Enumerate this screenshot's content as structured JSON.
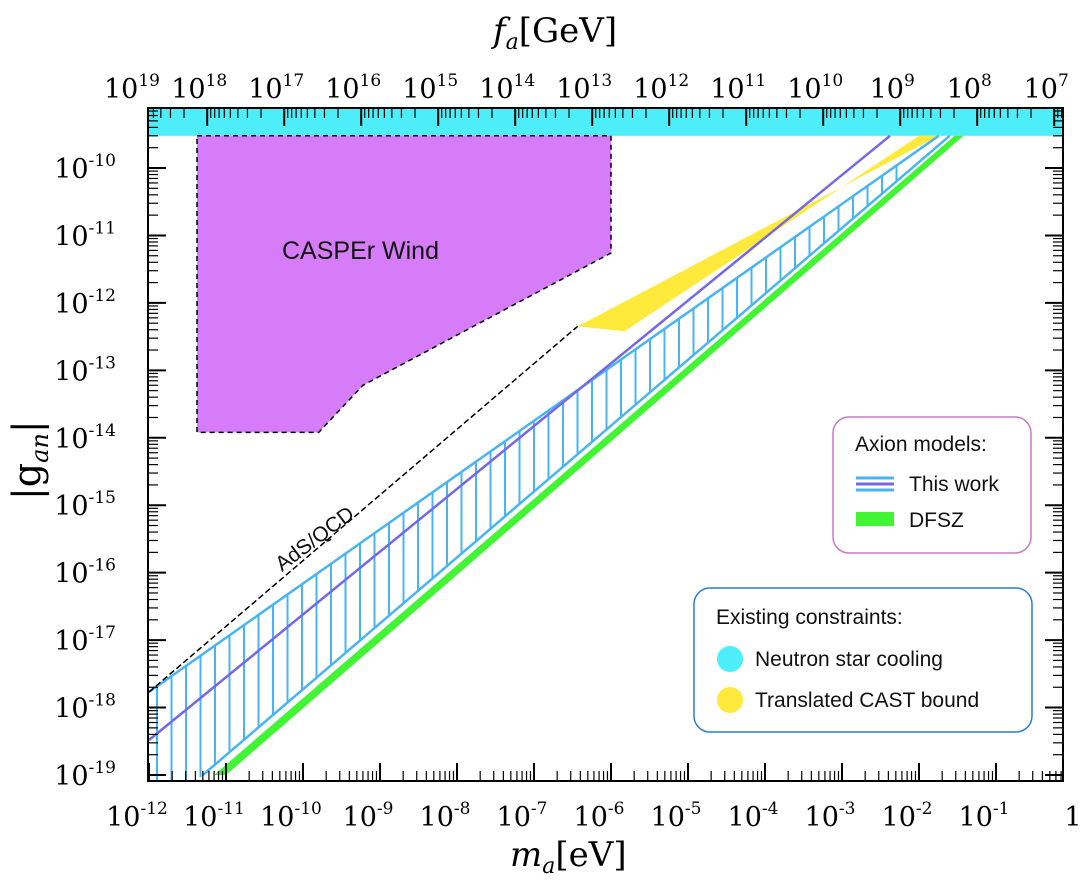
{
  "chart_data": {
    "type": "area",
    "x_scale": "log",
    "y_scale": "log",
    "xlim": [
      1e-12,
      1
    ],
    "ylim": [
      1e-19,
      1e-09
    ],
    "xlabel_main": "m",
    "xlabel_sub": "a",
    "xlabel_unit": "[eV]",
    "top_label_main": "f",
    "top_label_sub": "a",
    "top_label_unit": "[GeV]",
    "ylabel": "|g_an|",
    "ylabel_main": "|g",
    "ylabel_sub": "an",
    "ylabel_end": "|",
    "x_ticks": [
      {
        "base": "10",
        "exp": "-12"
      },
      {
        "base": "10",
        "exp": "-11"
      },
      {
        "base": "10",
        "exp": "-10"
      },
      {
        "base": "10",
        "exp": "-9"
      },
      {
        "base": "10",
        "exp": "-8"
      },
      {
        "base": "10",
        "exp": "-7"
      },
      {
        "base": "10",
        "exp": "-6"
      },
      {
        "base": "10",
        "exp": "-5"
      },
      {
        "base": "10",
        "exp": "-4"
      },
      {
        "base": "10",
        "exp": "-3"
      },
      {
        "base": "10",
        "exp": "-2"
      },
      {
        "base": "10",
        "exp": "-1"
      },
      {
        "base": "1",
        "exp": ""
      }
    ],
    "y_ticks": [
      {
        "base": "10",
        "exp": "-10",
        "value": 1e-10
      },
      {
        "base": "10",
        "exp": "-11",
        "value": 1e-11
      },
      {
        "base": "10",
        "exp": "-12",
        "value": 1e-12
      },
      {
        "base": "10",
        "exp": "-13",
        "value": 1e-13
      },
      {
        "base": "10",
        "exp": "-14",
        "value": 1e-14
      },
      {
        "base": "10",
        "exp": "-15",
        "value": 1e-15
      },
      {
        "base": "10",
        "exp": "-16",
        "value": 1e-16
      },
      {
        "base": "10",
        "exp": "-17",
        "value": 1e-17
      },
      {
        "base": "10",
        "exp": "-18",
        "value": 1e-18
      },
      {
        "base": "10",
        "exp": "-19",
        "value": 1e-19
      }
    ],
    "top_ticks": [
      {
        "base": "10",
        "exp": "19",
        "value": 1e+19
      },
      {
        "base": "10",
        "exp": "18",
        "value": 1e+18
      },
      {
        "base": "10",
        "exp": "17",
        "value": 1e+17
      },
      {
        "base": "10",
        "exp": "16",
        "value": 1e+16
      },
      {
        "base": "10",
        "exp": "15",
        "value": 1000000000000000.0
      },
      {
        "base": "10",
        "exp": "14",
        "value": 100000000000000.0
      },
      {
        "base": "10",
        "exp": "13",
        "value": 10000000000000.0
      },
      {
        "base": "10",
        "exp": "12",
        "value": 1000000000000.0
      },
      {
        "base": "10",
        "exp": "11",
        "value": 100000000000.0
      },
      {
        "base": "10",
        "exp": "10",
        "value": 10000000000.0
      },
      {
        "base": "10",
        "exp": "9",
        "value": 1000000000.0
      },
      {
        "base": "10",
        "exp": "8",
        "value": 100000000.0
      },
      {
        "base": "10",
        "exp": "7",
        "value": 10000000.0
      }
    ],
    "fa_conversion_GeV_eV": 5700000.0,
    "regions": {
      "neutron_star": {
        "name": "Neutron star cooling",
        "color": "#4deefa",
        "g_min": 3e-10
      },
      "casper": {
        "label": "CASPEr Wind",
        "color": "#d67cf9",
        "points": [
          [
            4.2e-12,
            3e-10
          ],
          [
            1e-06,
            3e-10
          ],
          [
            1e-06,
            5.5e-12
          ],
          [
            6e-10,
            6e-14
          ],
          [
            1.6e-10,
            1.2e-14
          ],
          [
            4.2e-12,
            1.2e-14
          ]
        ]
      },
      "cast": {
        "name": "Translated CAST bound",
        "color": "#ffe93a",
        "points": [
          [
            3.7e-07,
            4.5e-13
          ],
          [
            0.018,
            3e-10
          ],
          [
            0.01,
            3e-10
          ],
          [
            1.5e-06,
            3.8e-13
          ]
        ]
      },
      "this_work": {
        "name": "This work",
        "color": "#49b4f4",
        "center_color": "#7368e6",
        "upper_points": [
          [
            1e-12,
            1.7e-18
          ],
          [
            0.018,
            3e-10
          ]
        ],
        "lower_points": [
          [
            5e-12,
            1e-19
          ],
          [
            0.025,
            3e-10
          ]
        ],
        "center_points": [
          [
            1e-12,
            3.3e-19
          ],
          [
            0.0042,
            3e-10
          ]
        ]
      },
      "dfsz": {
        "name": "DFSZ",
        "color": "#41f434",
        "upper_points": [
          [
            7e-12,
            1e-19
          ],
          [
            0.029,
            3e-10
          ]
        ],
        "lower_points": [
          [
            1e-11,
            1e-19
          ],
          [
            0.038,
            3e-10
          ]
        ]
      },
      "ads_qcd": {
        "label": "AdS/QCD"
      }
    },
    "legend_models": {
      "title": "Axion models:",
      "items": [
        "This work",
        "DFSZ"
      ]
    },
    "legend_constraints": {
      "title": "Existing constraints:",
      "items": [
        "Neutron star cooling",
        "Translated CAST bound"
      ]
    }
  }
}
